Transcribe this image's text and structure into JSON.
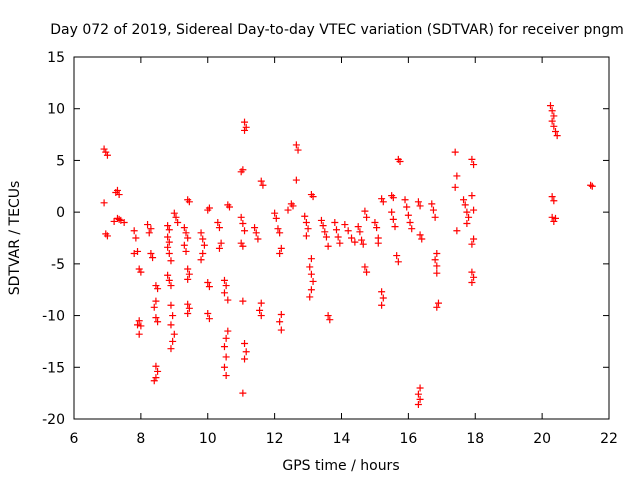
{
  "chart_data": {
    "type": "scatter",
    "title": "Day 072 of 2019, Sidereal Day-to-day VTEC variation (SDTVAR) for receiver pngm",
    "xlabel": "GPS time / hours",
    "ylabel": "SDTVAR / TECUs",
    "xlim": [
      6,
      22
    ],
    "ylim": [
      -20,
      15
    ],
    "xticks": [
      "6",
      "8",
      "10",
      "12",
      "14",
      "16",
      "18",
      "20",
      "22"
    ],
    "yticks": [
      "-20",
      "-15",
      "-10",
      "-5",
      "0",
      "5",
      "10",
      "15"
    ],
    "grid": false,
    "marker": "+",
    "color": "#ff0000",
    "series": [
      {
        "name": "SDTVAR",
        "points": [
          [
            6.9,
            6.1
          ],
          [
            6.95,
            5.8
          ],
          [
            7.0,
            5.5
          ],
          [
            6.9,
            0.9
          ],
          [
            6.95,
            -2.1
          ],
          [
            7.0,
            -2.3
          ],
          [
            7.3,
            2.1
          ],
          [
            7.35,
            1.7
          ],
          [
            7.25,
            1.9
          ],
          [
            7.3,
            -0.6
          ],
          [
            7.4,
            -0.8
          ],
          [
            7.5,
            -1.0
          ],
          [
            7.2,
            -0.9
          ],
          [
            7.35,
            -0.7
          ],
          [
            7.8,
            -1.8
          ],
          [
            7.85,
            -2.5
          ],
          [
            7.9,
            -3.8
          ],
          [
            7.8,
            -4.0
          ],
          [
            7.95,
            -5.5
          ],
          [
            8.0,
            -5.8
          ],
          [
            7.95,
            -10.5
          ],
          [
            8.0,
            -11.0
          ],
          [
            7.95,
            -11.8
          ],
          [
            7.9,
            -10.9
          ],
          [
            8.2,
            -1.2
          ],
          [
            8.3,
            -1.6
          ],
          [
            8.25,
            -2.0
          ],
          [
            8.3,
            -4.0
          ],
          [
            8.35,
            -4.4
          ],
          [
            8.45,
            -7.1
          ],
          [
            8.5,
            -7.4
          ],
          [
            8.45,
            -8.6
          ],
          [
            8.4,
            -9.2
          ],
          [
            8.45,
            -10.2
          ],
          [
            8.5,
            -10.6
          ],
          [
            8.45,
            -14.9
          ],
          [
            8.5,
            -15.4
          ],
          [
            8.45,
            -16.0
          ],
          [
            8.4,
            -16.3
          ],
          [
            8.8,
            -1.3
          ],
          [
            8.85,
            -1.7
          ],
          [
            8.8,
            -2.4
          ],
          [
            8.85,
            -2.9
          ],
          [
            8.8,
            -3.4
          ],
          [
            8.85,
            -4.0
          ],
          [
            8.9,
            -4.7
          ],
          [
            8.8,
            -6.1
          ],
          [
            8.85,
            -6.6
          ],
          [
            8.9,
            -7.1
          ],
          [
            8.9,
            -9.0
          ],
          [
            8.95,
            -10.0
          ],
          [
            8.9,
            -10.9
          ],
          [
            9.0,
            -11.8
          ],
          [
            8.95,
            -12.5
          ],
          [
            8.9,
            -13.2
          ],
          [
            9.0,
            -0.1
          ],
          [
            9.05,
            -0.5
          ],
          [
            9.1,
            -1.0
          ],
          [
            9.3,
            -1.5
          ],
          [
            9.35,
            -2.0
          ],
          [
            9.4,
            -2.5
          ],
          [
            9.3,
            -3.2
          ],
          [
            9.35,
            -3.8
          ],
          [
            9.4,
            -5.5
          ],
          [
            9.45,
            -6.0
          ],
          [
            9.4,
            -6.5
          ],
          [
            9.4,
            -8.9
          ],
          [
            9.45,
            -9.3
          ],
          [
            9.4,
            -9.8
          ],
          [
            9.45,
            1.0
          ],
          [
            9.4,
            1.2
          ],
          [
            9.8,
            -2.0
          ],
          [
            9.85,
            -2.6
          ],
          [
            9.9,
            -3.2
          ],
          [
            9.85,
            -4.0
          ],
          [
            9.8,
            -4.6
          ],
          [
            10.0,
            0.2
          ],
          [
            10.05,
            0.4
          ],
          [
            10.0,
            -6.8
          ],
          [
            10.05,
            -7.2
          ],
          [
            10.0,
            -9.8
          ],
          [
            10.05,
            -10.3
          ],
          [
            10.3,
            -1.0
          ],
          [
            10.35,
            -1.5
          ],
          [
            10.4,
            -3.0
          ],
          [
            10.35,
            -3.5
          ],
          [
            10.5,
            -6.6
          ],
          [
            10.55,
            -7.1
          ],
          [
            10.5,
            -7.8
          ],
          [
            10.6,
            -8.5
          ],
          [
            10.6,
            -11.5
          ],
          [
            10.55,
            -12.2
          ],
          [
            10.5,
            -13.0
          ],
          [
            10.55,
            -14.0
          ],
          [
            10.5,
            -15.0
          ],
          [
            10.55,
            -15.8
          ],
          [
            10.6,
            0.7
          ],
          [
            10.65,
            0.5
          ],
          [
            11.0,
            3.9
          ],
          [
            11.05,
            4.1
          ],
          [
            11.1,
            8.7
          ],
          [
            11.15,
            8.2
          ],
          [
            11.1,
            7.9
          ],
          [
            11.0,
            -0.5
          ],
          [
            11.05,
            -1.1
          ],
          [
            11.1,
            -1.8
          ],
          [
            11.0,
            -3.0
          ],
          [
            11.05,
            -3.3
          ],
          [
            11.05,
            -8.6
          ],
          [
            11.1,
            -12.7
          ],
          [
            11.15,
            -13.5
          ],
          [
            11.1,
            -14.2
          ],
          [
            11.05,
            -17.5
          ],
          [
            11.4,
            -1.5
          ],
          [
            11.45,
            -2.0
          ],
          [
            11.5,
            -2.6
          ],
          [
            11.6,
            3.0
          ],
          [
            11.65,
            2.6
          ],
          [
            11.6,
            -8.8
          ],
          [
            11.55,
            -9.5
          ],
          [
            11.6,
            -10.0
          ],
          [
            12.0,
            -0.1
          ],
          [
            12.05,
            -0.6
          ],
          [
            12.1,
            -1.6
          ],
          [
            12.15,
            -2.0
          ],
          [
            12.2,
            -3.5
          ],
          [
            12.15,
            -4.0
          ],
          [
            12.2,
            -9.9
          ],
          [
            12.15,
            -10.6
          ],
          [
            12.2,
            -11.4
          ],
          [
            12.4,
            0.2
          ],
          [
            12.5,
            0.8
          ],
          [
            12.55,
            0.6
          ],
          [
            12.65,
            6.5
          ],
          [
            12.7,
            6.0
          ],
          [
            12.65,
            3.1
          ],
          [
            12.9,
            -0.4
          ],
          [
            12.95,
            -1.0
          ],
          [
            13.0,
            -1.6
          ],
          [
            12.95,
            -2.3
          ],
          [
            13.1,
            1.7
          ],
          [
            13.15,
            1.5
          ],
          [
            13.1,
            -4.5
          ],
          [
            13.05,
            -5.3
          ],
          [
            13.1,
            -6.0
          ],
          [
            13.15,
            -6.7
          ],
          [
            13.1,
            -7.5
          ],
          [
            13.05,
            -8.2
          ],
          [
            13.4,
            -0.8
          ],
          [
            13.45,
            -1.3
          ],
          [
            13.5,
            -1.9
          ],
          [
            13.55,
            -2.4
          ],
          [
            13.6,
            -3.3
          ],
          [
            13.6,
            -10.0
          ],
          [
            13.65,
            -10.4
          ],
          [
            13.8,
            -1.0
          ],
          [
            13.85,
            -1.7
          ],
          [
            13.9,
            -2.4
          ],
          [
            13.95,
            -3.0
          ],
          [
            14.1,
            -1.2
          ],
          [
            14.2,
            -1.8
          ],
          [
            14.3,
            -2.5
          ],
          [
            14.4,
            -2.9
          ],
          [
            14.5,
            -1.4
          ],
          [
            14.55,
            -1.9
          ],
          [
            14.6,
            -2.7
          ],
          [
            14.65,
            -3.1
          ],
          [
            14.7,
            0.1
          ],
          [
            14.75,
            -0.5
          ],
          [
            14.7,
            -5.3
          ],
          [
            14.75,
            -5.8
          ],
          [
            15.0,
            -1.0
          ],
          [
            15.05,
            -1.5
          ],
          [
            15.1,
            -2.5
          ],
          [
            15.1,
            -3.0
          ],
          [
            15.2,
            1.3
          ],
          [
            15.25,
            1.0
          ],
          [
            15.2,
            -7.7
          ],
          [
            15.25,
            -8.3
          ],
          [
            15.2,
            -9.0
          ],
          [
            15.5,
            1.6
          ],
          [
            15.55,
            1.4
          ],
          [
            15.5,
            0.0
          ],
          [
            15.55,
            -0.7
          ],
          [
            15.6,
            -1.4
          ],
          [
            15.7,
            5.1
          ],
          [
            15.75,
            4.9
          ],
          [
            15.65,
            -4.2
          ],
          [
            15.7,
            -4.8
          ],
          [
            15.9,
            1.2
          ],
          [
            15.95,
            0.5
          ],
          [
            16.0,
            -0.3
          ],
          [
            16.05,
            -1.0
          ],
          [
            16.1,
            -1.6
          ],
          [
            16.3,
            1.0
          ],
          [
            16.35,
            0.6
          ],
          [
            16.35,
            -2.2
          ],
          [
            16.4,
            -2.6
          ],
          [
            16.35,
            -17.0
          ],
          [
            16.3,
            -17.6
          ],
          [
            16.35,
            -18.1
          ],
          [
            16.3,
            -18.6
          ],
          [
            16.7,
            0.8
          ],
          [
            16.75,
            0.2
          ],
          [
            16.8,
            -0.5
          ],
          [
            16.85,
            -4.0
          ],
          [
            16.8,
            -4.6
          ],
          [
            16.85,
            -5.2
          ],
          [
            16.85,
            -5.9
          ],
          [
            16.9,
            -8.8
          ],
          [
            16.85,
            -9.2
          ],
          [
            17.4,
            5.8
          ],
          [
            17.45,
            3.5
          ],
          [
            17.4,
            2.4
          ],
          [
            17.45,
            -1.8
          ],
          [
            17.65,
            1.2
          ],
          [
            17.7,
            0.7
          ],
          [
            17.75,
            0.0
          ],
          [
            17.8,
            -0.5
          ],
          [
            17.75,
            -1.1
          ],
          [
            17.9,
            5.1
          ],
          [
            17.95,
            4.6
          ],
          [
            17.9,
            1.6
          ],
          [
            17.95,
            0.2
          ],
          [
            17.95,
            -2.6
          ],
          [
            17.9,
            -3.1
          ],
          [
            17.9,
            -5.8
          ],
          [
            17.95,
            -6.3
          ],
          [
            17.9,
            -6.8
          ],
          [
            20.25,
            10.3
          ],
          [
            20.3,
            9.8
          ],
          [
            20.35,
            9.3
          ],
          [
            20.3,
            8.8
          ],
          [
            20.35,
            8.3
          ],
          [
            20.4,
            7.8
          ],
          [
            20.45,
            7.4
          ],
          [
            20.3,
            1.5
          ],
          [
            20.35,
            1.1
          ],
          [
            20.3,
            -0.5
          ],
          [
            20.35,
            -0.9
          ],
          [
            20.4,
            -0.6
          ],
          [
            21.45,
            2.6
          ],
          [
            21.5,
            2.5
          ]
        ]
      }
    ]
  }
}
